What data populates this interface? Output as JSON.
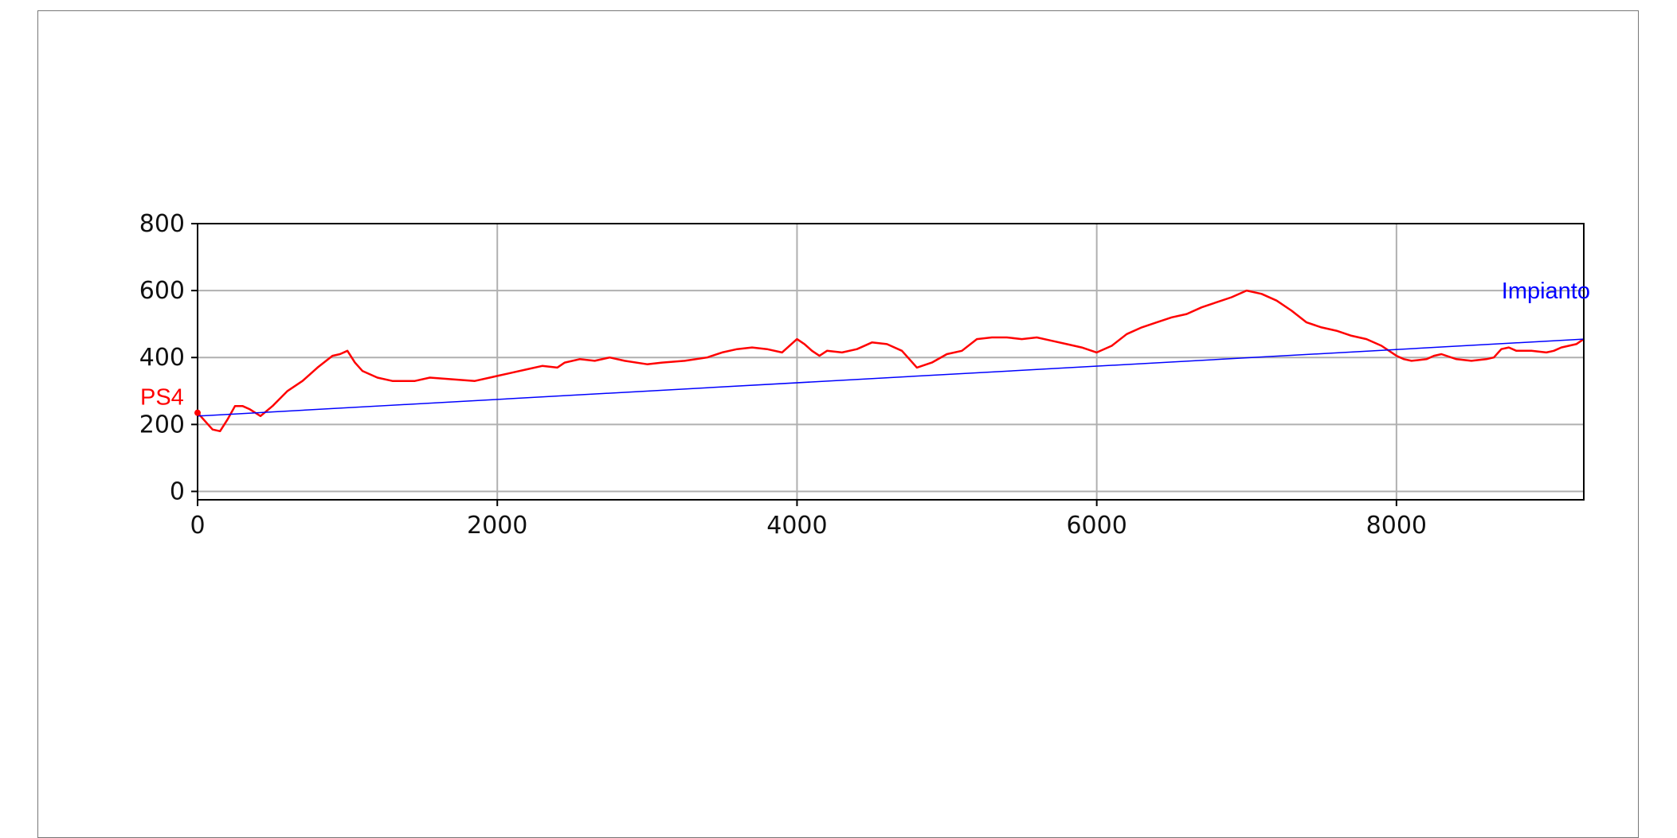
{
  "chart_data": {
    "type": "line",
    "xlim": [
      0,
      9250
    ],
    "ylim": [
      -25,
      800
    ],
    "x_ticks": [
      0,
      2000,
      4000,
      6000,
      8000
    ],
    "y_ticks": [
      0,
      200,
      400,
      600,
      800
    ],
    "x_tick_labels": [
      "0",
      "2000",
      "4000",
      "6000",
      "8000"
    ],
    "y_tick_labels": [
      "0",
      "200",
      "400",
      "600",
      "800"
    ],
    "grid": true,
    "colors": {
      "profile": "#ff0000",
      "line_of_sight": "#0000ff",
      "grid": "#b0b0b0",
      "axes": "#000000"
    },
    "annotations": [
      {
        "text": "PS4",
        "x": 0,
        "y": 235,
        "color": "#ff0000",
        "anchor": "start-point"
      },
      {
        "text": "Impianto",
        "x": 9250,
        "y": 455,
        "color": "#0000ff",
        "anchor": "end-point"
      }
    ],
    "series": [
      {
        "style": "line",
        "color": "#ff0000",
        "x": [
          0,
          50,
          100,
          150,
          200,
          250,
          300,
          350,
          420,
          500,
          600,
          700,
          800,
          900,
          950,
          1000,
          1050,
          1100,
          1200,
          1300,
          1450,
          1550,
          1700,
          1850,
          1950,
          2000,
          2100,
          2200,
          2300,
          2400,
          2450,
          2550,
          2650,
          2750,
          2850,
          3000,
          3100,
          3250,
          3400,
          3500,
          3600,
          3700,
          3800,
          3900,
          4000,
          4050,
          4100,
          4150,
          4200,
          4300,
          4400,
          4500,
          4600,
          4700,
          4800,
          4900,
          5000,
          5100,
          5200,
          5300,
          5400,
          5500,
          5600,
          5700,
          5800,
          5900,
          6000,
          6100,
          6200,
          6300,
          6400,
          6500,
          6600,
          6700,
          6800,
          6900,
          7000,
          7100,
          7200,
          7300,
          7400,
          7500,
          7600,
          7700,
          7800,
          7900,
          8000,
          8050,
          8100,
          8200,
          8250,
          8300,
          8400,
          8500,
          8600,
          8650,
          8700,
          8750,
          8800,
          8900,
          9000,
          9050,
          9100,
          9200,
          9250
        ],
        "y": [
          235,
          210,
          185,
          180,
          215,
          255,
          255,
          245,
          225,
          255,
          300,
          330,
          370,
          405,
          410,
          420,
          385,
          360,
          340,
          330,
          330,
          340,
          335,
          330,
          340,
          345,
          355,
          365,
          375,
          370,
          385,
          395,
          390,
          400,
          390,
          380,
          385,
          390,
          400,
          415,
          425,
          430,
          425,
          415,
          455,
          440,
          420,
          405,
          420,
          415,
          425,
          445,
          440,
          420,
          370,
          385,
          410,
          420,
          455,
          460,
          460,
          455,
          460,
          450,
          440,
          430,
          415,
          435,
          470,
          490,
          505,
          520,
          530,
          550,
          565,
          580,
          600,
          590,
          570,
          540,
          505,
          490,
          480,
          465,
          455,
          435,
          405,
          395,
          390,
          395,
          405,
          410,
          395,
          390,
          395,
          400,
          425,
          430,
          420,
          420,
          415,
          420,
          430,
          440,
          455
        ]
      },
      {
        "style": "line",
        "color": "#0000ff",
        "x": [
          0,
          9250
        ],
        "y": [
          225,
          455
        ]
      }
    ]
  }
}
